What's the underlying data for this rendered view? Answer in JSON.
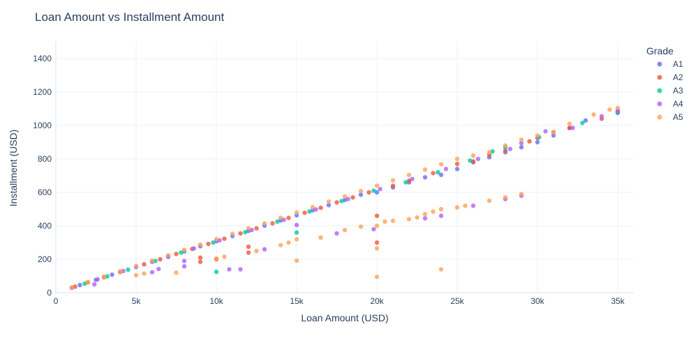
{
  "chart_data": {
    "type": "scatter",
    "title": "Loan Amount vs Installment Amount",
    "xlabel": "Loan Amount (USD)",
    "ylabel": "Installment (USD)",
    "xlim": [
      0,
      36000
    ],
    "ylim": [
      0,
      1500
    ],
    "x_ticks": [
      0,
      5000,
      10000,
      15000,
      20000,
      25000,
      30000,
      35000
    ],
    "x_tick_labels": [
      "0",
      "5k",
      "10k",
      "15k",
      "20k",
      "25k",
      "30k",
      "35k"
    ],
    "y_ticks": [
      0,
      200,
      400,
      600,
      800,
      1000,
      1200,
      1400
    ],
    "y_tick_labels": [
      "0",
      "200",
      "400",
      "600",
      "800",
      "1000",
      "1200",
      "1400"
    ],
    "grid": true,
    "legend_title": "Grade",
    "legend_position": "top-right",
    "series": [
      {
        "name": "A1",
        "color": "#636efa",
        "points": [
          [
            1000,
            30
          ],
          [
            1500,
            46
          ],
          [
            2500,
            77
          ],
          [
            3500,
            108
          ],
          [
            5000,
            154
          ],
          [
            6000,
            185
          ],
          [
            7000,
            216
          ],
          [
            8000,
            247
          ],
          [
            9000,
            278
          ],
          [
            10000,
            308
          ],
          [
            11000,
            339
          ],
          [
            12000,
            370
          ],
          [
            13000,
            401
          ],
          [
            14000,
            432
          ],
          [
            15000,
            463
          ],
          [
            16000,
            493
          ],
          [
            17000,
            524
          ],
          [
            18000,
            555
          ],
          [
            19000,
            586
          ],
          [
            20000,
            600
          ],
          [
            21000,
            630
          ],
          [
            22000,
            660
          ],
          [
            23000,
            690
          ],
          [
            24000,
            705
          ],
          [
            25000,
            740
          ],
          [
            26000,
            780
          ],
          [
            27000,
            810
          ],
          [
            28000,
            840
          ],
          [
            29000,
            870
          ],
          [
            30000,
            900
          ],
          [
            31000,
            940
          ],
          [
            32000,
            985
          ],
          [
            33000,
            1030
          ],
          [
            35000,
            1075
          ]
        ]
      },
      {
        "name": "A2",
        "color": "#ef553b",
        "points": [
          [
            1200,
            36
          ],
          [
            2000,
            62
          ],
          [
            3000,
            92
          ],
          [
            4000,
            124
          ],
          [
            5500,
            170
          ],
          [
            6500,
            200
          ],
          [
            7500,
            232
          ],
          [
            8500,
            262
          ],
          [
            9000,
            185
          ],
          [
            9000,
            210
          ],
          [
            9500,
            292
          ],
          [
            10000,
            200
          ],
          [
            10500,
            323
          ],
          [
            11500,
            355
          ],
          [
            12000,
            240
          ],
          [
            12000,
            275
          ],
          [
            12500,
            385
          ],
          [
            13500,
            415
          ],
          [
            14500,
            447
          ],
          [
            15500,
            478
          ],
          [
            16500,
            508
          ],
          [
            17500,
            540
          ],
          [
            18500,
            570
          ],
          [
            19500,
            600
          ],
          [
            20000,
            300
          ],
          [
            20000,
            460
          ],
          [
            21000,
            640
          ],
          [
            22000,
            670
          ],
          [
            23500,
            715
          ],
          [
            25000,
            770
          ],
          [
            26000,
            785
          ],
          [
            27000,
            825
          ],
          [
            28000,
            850
          ],
          [
            29500,
            905
          ],
          [
            30000,
            925
          ],
          [
            31000,
            960
          ],
          [
            32000,
            985
          ],
          [
            34000,
            1040
          ],
          [
            35000,
            1090
          ]
        ]
      },
      {
        "name": "A3",
        "color": "#00cc96",
        "points": [
          [
            1800,
            55
          ],
          [
            3200,
            98
          ],
          [
            4500,
            138
          ],
          [
            6200,
            190
          ],
          [
            7800,
            240
          ],
          [
            9800,
            300
          ],
          [
            10000,
            125
          ],
          [
            11800,
            362
          ],
          [
            13800,
            425
          ],
          [
            15000,
            360
          ],
          [
            15800,
            486
          ],
          [
            17800,
            548
          ],
          [
            19800,
            610
          ],
          [
            21800,
            660
          ],
          [
            23800,
            720
          ],
          [
            25800,
            790
          ],
          [
            27200,
            845
          ],
          [
            28000,
            870
          ],
          [
            30100,
            930
          ],
          [
            32800,
            1015
          ],
          [
            35000,
            1080
          ]
        ]
      },
      {
        "name": "A4",
        "color": "#ab63fa",
        "points": [
          [
            1000,
            31
          ],
          [
            2400,
            50
          ],
          [
            2600,
            80
          ],
          [
            4200,
            130
          ],
          [
            6000,
            123
          ],
          [
            6400,
            142
          ],
          [
            7000,
            215
          ],
          [
            8000,
            158
          ],
          [
            8000,
            190
          ],
          [
            8600,
            265
          ],
          [
            10200,
            313
          ],
          [
            10800,
            140
          ],
          [
            11500,
            140
          ],
          [
            12200,
            375
          ],
          [
            13000,
            260
          ],
          [
            14200,
            436
          ],
          [
            15000,
            405
          ],
          [
            16200,
            498
          ],
          [
            17500,
            355
          ],
          [
            18200,
            560
          ],
          [
            19800,
            380
          ],
          [
            20200,
            620
          ],
          [
            22200,
            680
          ],
          [
            23000,
            445
          ],
          [
            24000,
            460
          ],
          [
            24300,
            740
          ],
          [
            26000,
            520
          ],
          [
            26300,
            800
          ],
          [
            28000,
            560
          ],
          [
            28300,
            860
          ],
          [
            29000,
            580
          ],
          [
            29000,
            895
          ],
          [
            30500,
            965
          ],
          [
            32200,
            985
          ],
          [
            34000,
            1055
          ],
          [
            35000,
            1085
          ]
        ]
      },
      {
        "name": "A5",
        "color": "#ffa15a",
        "points": [
          [
            1000,
            32
          ],
          [
            2000,
            64
          ],
          [
            3000,
            96
          ],
          [
            4000,
            128
          ],
          [
            5000,
            105
          ],
          [
            5000,
            160
          ],
          [
            5500,
            115
          ],
          [
            6000,
            192
          ],
          [
            7000,
            224
          ],
          [
            7500,
            120
          ],
          [
            8000,
            256
          ],
          [
            9000,
            288
          ],
          [
            10000,
            205
          ],
          [
            10000,
            320
          ],
          [
            10500,
            215
          ],
          [
            11000,
            352
          ],
          [
            12000,
            385
          ],
          [
            12500,
            250
          ],
          [
            13000,
            415
          ],
          [
            14000,
            285
          ],
          [
            14000,
            448
          ],
          [
            14500,
            300
          ],
          [
            15000,
            192
          ],
          [
            15000,
            320
          ],
          [
            15000,
            480
          ],
          [
            16000,
            512
          ],
          [
            16500,
            330
          ],
          [
            17000,
            545
          ],
          [
            18000,
            375
          ],
          [
            18000,
            576
          ],
          [
            19000,
            395
          ],
          [
            19000,
            608
          ],
          [
            20000,
            95
          ],
          [
            20000,
            265
          ],
          [
            20000,
            400
          ],
          [
            20000,
            640
          ],
          [
            20500,
            425
          ],
          [
            21000,
            430
          ],
          [
            21000,
            672
          ],
          [
            22000,
            440
          ],
          [
            22000,
            704
          ],
          [
            22500,
            450
          ],
          [
            23000,
            470
          ],
          [
            23000,
            736
          ],
          [
            23500,
            485
          ],
          [
            24000,
            140
          ],
          [
            24000,
            500
          ],
          [
            24000,
            768
          ],
          [
            25000,
            510
          ],
          [
            25000,
            800
          ],
          [
            25500,
            520
          ],
          [
            26000,
            820
          ],
          [
            27000,
            550
          ],
          [
            27000,
            840
          ],
          [
            28000,
            570
          ],
          [
            28000,
            880
          ],
          [
            29000,
            590
          ],
          [
            29000,
            915
          ],
          [
            30000,
            940
          ],
          [
            31000,
            960
          ],
          [
            32000,
            1010
          ],
          [
            33500,
            1065
          ],
          [
            34500,
            1095
          ],
          [
            35000,
            1105
          ]
        ]
      }
    ]
  }
}
